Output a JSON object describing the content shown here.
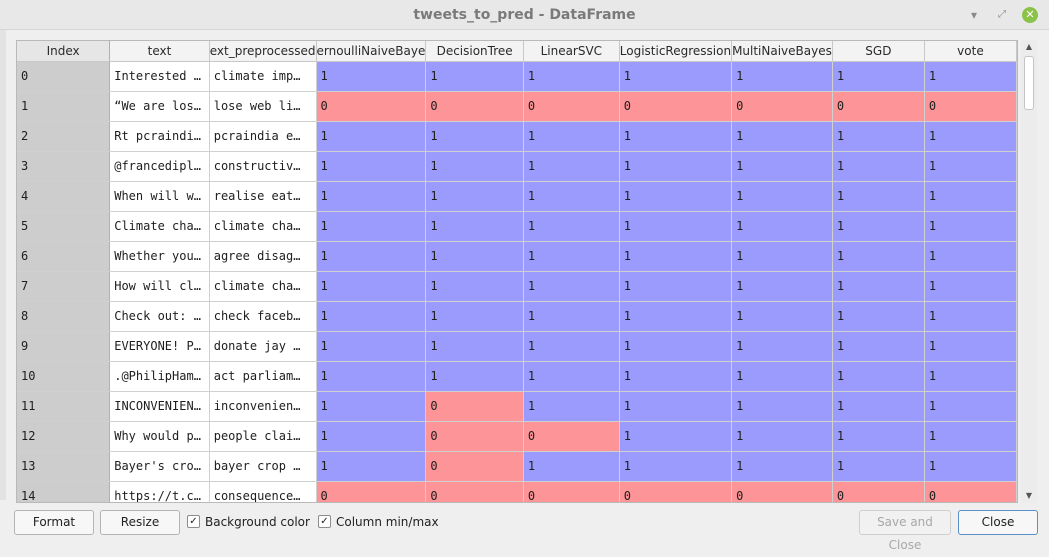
{
  "window": {
    "title": "tweets_to_pred - DataFrame"
  },
  "titlebar_icons": {
    "minimize": "minimize-icon",
    "maximize": "maximize-icon",
    "close": "close-icon"
  },
  "colors": {
    "one": "#9a9bfc",
    "zero": "#fd9498",
    "index_bg": "#cdcdcd"
  },
  "table": {
    "columns": [
      "Index",
      "text",
      "ext_preprocessed",
      "ernoulliNaiveBaye",
      "DecisionTree",
      "LinearSVC",
      "LogisticRegression",
      "MultiNaiveBayes",
      "SGD",
      "vote"
    ],
    "rows": [
      {
        "index": "0",
        "text": "Interested …",
        "pre": "climate imp…",
        "vals": [
          "1",
          "1",
          "1",
          "1",
          "1",
          "1",
          "1"
        ]
      },
      {
        "index": "1",
        "text": "“We are los…",
        "pre": "lose web li…",
        "vals": [
          "0",
          "0",
          "0",
          "0",
          "0",
          "0",
          "0"
        ]
      },
      {
        "index": "2",
        "text": "Rt pcraindi…",
        "pre": "pcraindia e…",
        "vals": [
          "1",
          "1",
          "1",
          "1",
          "1",
          "1",
          "1"
        ]
      },
      {
        "index": "3",
        "text": "@francedipl…",
        "pre": "constructiv…",
        "vals": [
          "1",
          "1",
          "1",
          "1",
          "1",
          "1",
          "1"
        ]
      },
      {
        "index": "4",
        "text": "When will w…",
        "pre": "realise eat…",
        "vals": [
          "1",
          "1",
          "1",
          "1",
          "1",
          "1",
          "1"
        ]
      },
      {
        "index": "5",
        "text": "Climate cha…",
        "pre": "climate cha…",
        "vals": [
          "1",
          "1",
          "1",
          "1",
          "1",
          "1",
          "1"
        ]
      },
      {
        "index": "6",
        "text": "Whether you…",
        "pre": "agree disag…",
        "vals": [
          "1",
          "1",
          "1",
          "1",
          "1",
          "1",
          "1"
        ]
      },
      {
        "index": "7",
        "text": "How will cl…",
        "pre": "climate cha…",
        "vals": [
          "1",
          "1",
          "1",
          "1",
          "1",
          "1",
          "1"
        ]
      },
      {
        "index": "8",
        "text": "Check out: …",
        "pre": "check faceb…",
        "vals": [
          "1",
          "1",
          "1",
          "1",
          "1",
          "1",
          "1"
        ]
      },
      {
        "index": "9",
        "text": "EVERYONE! P…",
        "pre": "donate jay …",
        "vals": [
          "1",
          "1",
          "1",
          "1",
          "1",
          "1",
          "1"
        ]
      },
      {
        "index": "10",
        "text": ".@PhilipHam…",
        "pre": "act parliam…",
        "vals": [
          "1",
          "1",
          "1",
          "1",
          "1",
          "1",
          "1"
        ]
      },
      {
        "index": "11",
        "text": "INCONVENIEN…",
        "pre": "inconvenien…",
        "vals": [
          "1",
          "0",
          "1",
          "1",
          "1",
          "1",
          "1"
        ]
      },
      {
        "index": "12",
        "text": "Why would p…",
        "pre": "people clai…",
        "vals": [
          "1",
          "0",
          "0",
          "1",
          "1",
          "1",
          "1"
        ]
      },
      {
        "index": "13",
        "text": "Bayer's cro…",
        "pre": "bayer crop …",
        "vals": [
          "1",
          "0",
          "1",
          "1",
          "1",
          "1",
          "1"
        ]
      },
      {
        "index": "14",
        "text": "https://t.c…",
        "pre": "consequence…",
        "vals": [
          "0",
          "0",
          "0",
          "0",
          "0",
          "0",
          "0"
        ]
      }
    ]
  },
  "buttons": {
    "format": "Format",
    "resize": "Resize",
    "save_and_close": "Save and Close",
    "close": "Close"
  },
  "checkboxes": {
    "background_color": {
      "label": "Background color",
      "checked": true
    },
    "column_minmax": {
      "label": "Column min/max",
      "checked": true
    }
  }
}
